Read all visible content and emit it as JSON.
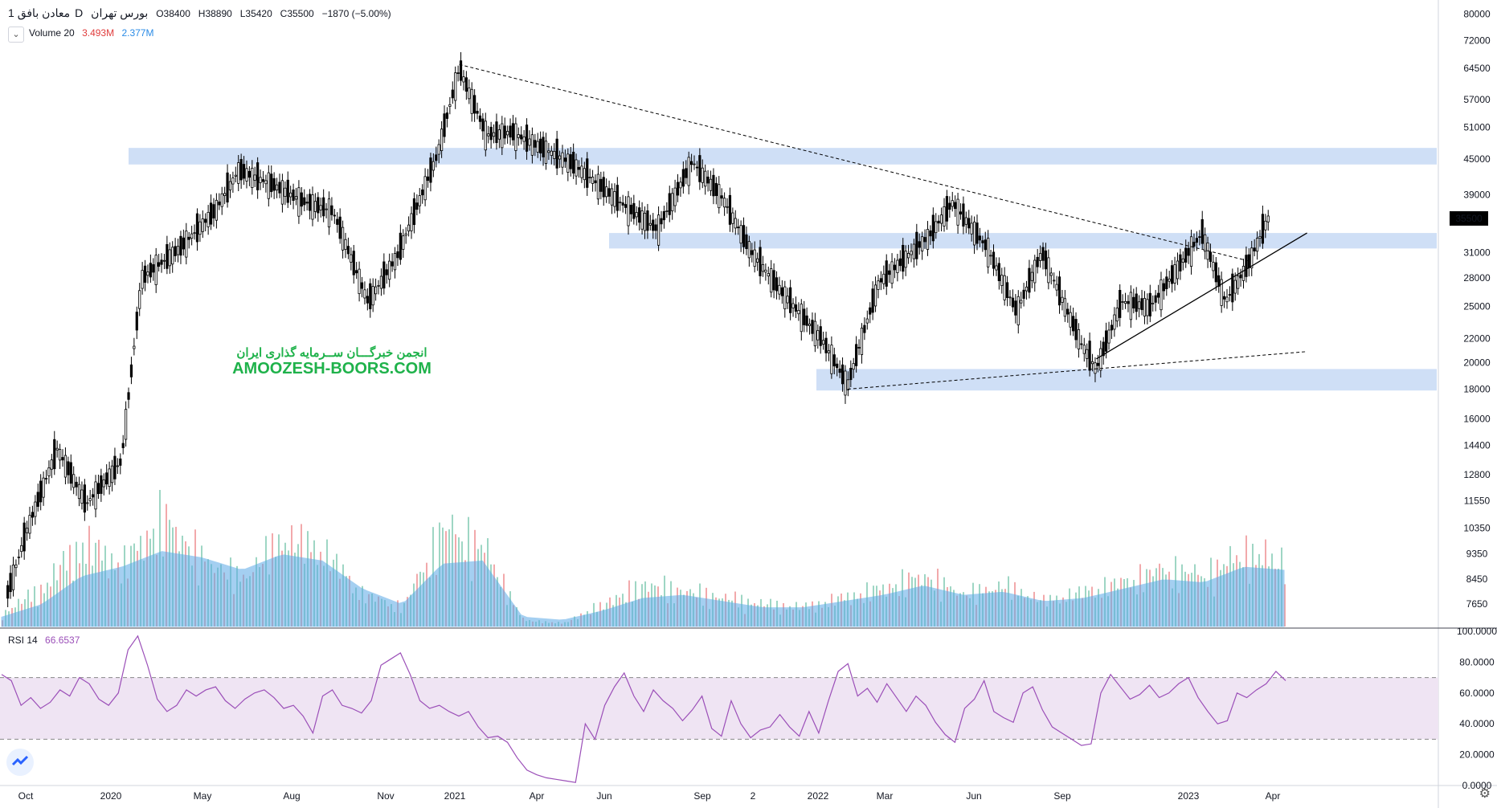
{
  "header": {
    "symbol": "معادن بافق",
    "interval": "1D",
    "exchange": "بورس تهران",
    "open": "O38400",
    "high": "H38890",
    "low": "L35420",
    "close": "C35500",
    "change": "−1870 (−5.00%)",
    "volume_label": "Volume 20",
    "volume_value": "3.493M",
    "volume_ma": "2.377M",
    "rsi_label": "RSI 14",
    "rsi_value": "66.6537",
    "collapse_icon": "chevron-down-icon"
  },
  "watermark": {
    "line1": "انجمن خبرگـــان ســرمایه گذاری ایران",
    "line2": "AMOOZESH-BOORS.COM"
  },
  "colors": {
    "zone": "#c7d9f5",
    "rsi_band": "#efe4f3",
    "rsi_line": "#9b4fb8",
    "volume_up": "#9ed6c4",
    "volume_down": "#f2a9ab",
    "volume_ma": "#5aa9e6",
    "candle": "#000000",
    "price_badge": "#000000"
  },
  "chart_data": [
    {
      "type": "candlestick",
      "title": "",
      "scale": "log",
      "ylim": [
        7000,
        82000
      ],
      "price_axis_ticks": [
        "80000",
        "72000",
        "64500",
        "57000",
        "51000",
        "45000",
        "39000",
        "35500",
        "31000",
        "28000",
        "25000",
        "22000",
        "20000",
        "18000",
        "16000",
        "14400",
        "12800",
        "11550",
        "10350",
        "9350",
        "8450",
        "7650"
      ],
      "time_axis_ticks": [
        "Oct",
        "2020",
        "May",
        "Aug",
        "Nov",
        "2021",
        "Apr",
        "Jun",
        "Sep",
        "2",
        "2022",
        "Mar",
        "Jun",
        "Sep",
        "2023",
        "Apr"
      ],
      "last_price": "35500",
      "approx_close_path": [
        {
          "x": "2019-09-20",
          "y": 8000
        },
        {
          "x": "2019-10-10",
          "y": 10300
        },
        {
          "x": "2019-11-10",
          "y": 14200
        },
        {
          "x": "2019-12-10",
          "y": 11400
        },
        {
          "x": "2020-01-15",
          "y": 13500
        },
        {
          "x": "2020-02-05",
          "y": 28000
        },
        {
          "x": "2020-03-15",
          "y": 31500
        },
        {
          "x": "2020-04-20",
          "y": 36500
        },
        {
          "x": "2020-05-15",
          "y": 43000
        },
        {
          "x": "2020-06-20",
          "y": 40500
        },
        {
          "x": "2020-07-20",
          "y": 38000
        },
        {
          "x": "2020-08-20",
          "y": 36500
        },
        {
          "x": "2020-09-25",
          "y": 25500
        },
        {
          "x": "2020-10-25",
          "y": 30500
        },
        {
          "x": "2020-12-05",
          "y": 45500
        },
        {
          "x": "2020-12-28",
          "y": 64500
        },
        {
          "x": "2021-01-25",
          "y": 49500
        },
        {
          "x": "2021-02-20",
          "y": 50000
        },
        {
          "x": "2021-04-25",
          "y": 44000
        },
        {
          "x": "2021-06-15",
          "y": 37500
        },
        {
          "x": "2021-07-20",
          "y": 34000
        },
        {
          "x": "2021-08-25",
          "y": 44500
        },
        {
          "x": "2021-09-25",
          "y": 38500
        },
        {
          "x": "2021-10-25",
          "y": 31000
        },
        {
          "x": "2021-11-25",
          "y": 26500
        },
        {
          "x": "2022-01-05",
          "y": 22000
        },
        {
          "x": "2022-02-01",
          "y": 18300
        },
        {
          "x": "2022-03-05",
          "y": 27500
        },
        {
          "x": "2022-04-25",
          "y": 33000
        },
        {
          "x": "2022-05-20",
          "y": 37800
        },
        {
          "x": "2022-06-25",
          "y": 31500
        },
        {
          "x": "2022-07-25",
          "y": 24500
        },
        {
          "x": "2022-08-20",
          "y": 31000
        },
        {
          "x": "2022-09-30",
          "y": 21500
        },
        {
          "x": "2022-10-15",
          "y": 19500
        },
        {
          "x": "2022-11-10",
          "y": 25500
        },
        {
          "x": "2022-12-10",
          "y": 25000
        },
        {
          "x": "2023-01-15",
          "y": 30500
        },
        {
          "x": "2023-02-01",
          "y": 33500
        },
        {
          "x": "2023-02-25",
          "y": 25500
        },
        {
          "x": "2023-03-20",
          "y": 29500
        },
        {
          "x": "2023-04-10",
          "y": 35500
        }
      ],
      "support_resistance_zones": [
        {
          "low": 44000,
          "high": 47000
        },
        {
          "low": 31500,
          "high": 33500
        },
        {
          "low": 17900,
          "high": 19500
        }
      ],
      "trendlines": [
        {
          "style": "dashed",
          "from": {
            "x": "2020-12-28",
            "y": 65500
          },
          "to": {
            "x": "2023-03-20",
            "y": 30000
          }
        },
        {
          "style": "dashed",
          "from": {
            "x": "2022-02-01",
            "y": 18000
          },
          "to": {
            "x": "2023-05-20",
            "y": 20900
          }
        },
        {
          "style": "solid",
          "from": {
            "x": "2022-10-15",
            "y": 20300
          },
          "to": {
            "x": "2023-05-20",
            "y": 33500
          }
        }
      ]
    },
    {
      "type": "bar",
      "title": "",
      "ylabel": "",
      "series": [
        {
          "name": "Volume",
          "values": [
            0.4,
            1.2,
            2.6,
            1.9,
            3.4,
            2.1,
            1.5,
            2.8,
            2.4,
            1.0,
            0.6,
            3.1,
            2.5,
            0.2,
            0.1,
            0.7,
            1.3,
            1.1,
            0.9,
            0.7,
            0.6,
            0.9,
            1.2,
            1.6,
            1.0,
            1.3,
            0.8,
            1.1,
            1.4,
            1.8,
            1.6,
            2.3,
            2.0
          ]
        },
        {
          "name": "MA",
          "values": [
            0.3,
            0.7,
            1.6,
            1.9,
            2.4,
            2.2,
            1.8,
            2.3,
            2.1,
            1.2,
            0.7,
            2.0,
            2.1,
            0.3,
            0.2,
            0.5,
            0.9,
            1.0,
            0.8,
            0.6,
            0.6,
            0.8,
            1.0,
            1.3,
            1.0,
            1.1,
            0.8,
            0.9,
            1.2,
            1.5,
            1.4,
            1.9,
            1.8
          ]
        }
      ]
    },
    {
      "type": "line",
      "title": "",
      "ylim": [
        0,
        100
      ],
      "y_axis_ticks": [
        "100.0000",
        "80.0000",
        "60.0000",
        "40.0000",
        "20.0000",
        "0.0000"
      ],
      "bands": {
        "upper": 70,
        "lower": 30
      },
      "series": [
        {
          "name": "RSI 14",
          "values": [
            72,
            68,
            52,
            57,
            50,
            54,
            62,
            58,
            70,
            66,
            56,
            52,
            60,
            88,
            97,
            78,
            56,
            48,
            52,
            62,
            58,
            62,
            64,
            55,
            50,
            56,
            60,
            62,
            57,
            50,
            52,
            45,
            34,
            58,
            62,
            52,
            50,
            47,
            55,
            78,
            82,
            86,
            72,
            55,
            50,
            52,
            48,
            45,
            48,
            38,
            31,
            32,
            28,
            18,
            10,
            7,
            5,
            4,
            3,
            2,
            40,
            30,
            52,
            64,
            73,
            58,
            48,
            62,
            55,
            50,
            42,
            49,
            58,
            37,
            32,
            55,
            40,
            31,
            36,
            38,
            46,
            38,
            32,
            48,
            34,
            55,
            74,
            79,
            58,
            63,
            54,
            66,
            57,
            48,
            58,
            52,
            41,
            33,
            28,
            50,
            56,
            68,
            48,
            44,
            41,
            60,
            64,
            49,
            38,
            34,
            30,
            26,
            27,
            60,
            72,
            64,
            56,
            59,
            65,
            57,
            60,
            66,
            70,
            57,
            48,
            40,
            42,
            60,
            57,
            62,
            66,
            74,
            68
          ]
        }
      ]
    }
  ]
}
